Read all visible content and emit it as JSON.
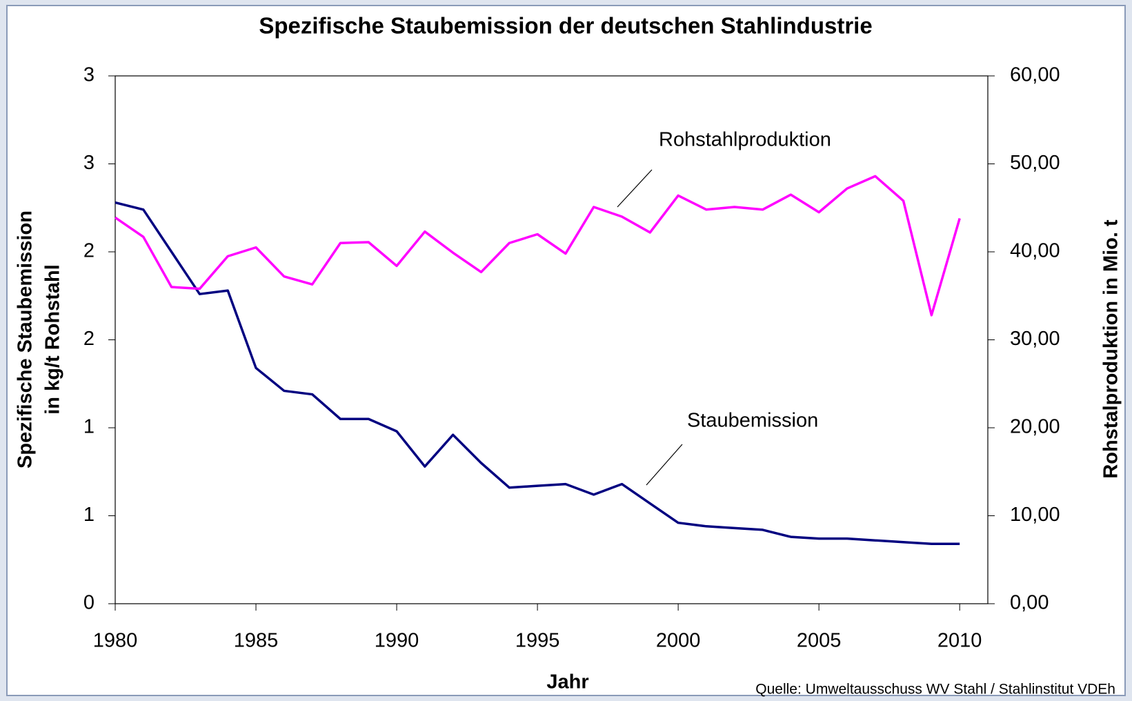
{
  "chart_data": {
    "type": "line",
    "title": "Spezifische Staubemission der deutschen Stahlindustrie",
    "x_label": "Jahr",
    "y_label": [
      "Spezifische Staubemission",
      "in kg/t Rohstahl"
    ],
    "y2_label": "Rohstalproduktion in Mio. t",
    "source": "Quelle: Umweltausschuss WV Stahl / Stahlinstitut VDEh",
    "x": [
      1980,
      1981,
      1982,
      1983,
      1984,
      1985,
      1986,
      1987,
      1988,
      1989,
      1990,
      1991,
      1992,
      1993,
      1994,
      1995,
      1996,
      1997,
      1998,
      1999,
      2000,
      2001,
      2002,
      2003,
      2004,
      2005,
      2006,
      2007,
      2008,
      2009,
      2010
    ],
    "xlim": [
      1980,
      2011
    ],
    "xticks": [
      1980,
      1985,
      1990,
      1995,
      2000,
      2005,
      2010
    ],
    "ylim": [
      0,
      3
    ],
    "yticks": [
      0,
      {
        "value": 0.5,
        "label": "1"
      },
      1,
      {
        "value": 1.5,
        "label": "2"
      },
      2,
      {
        "value": 2.5,
        "label": "3"
      },
      3
    ],
    "y2lim": [
      0,
      60
    ],
    "y2ticks": [
      {
        "value": 0,
        "label": "0,00"
      },
      {
        "value": 10,
        "label": "10,00"
      },
      {
        "value": 20,
        "label": "20,00"
      },
      {
        "value": 30,
        "label": "30,00"
      },
      {
        "value": 40,
        "label": "40,00"
      },
      {
        "value": 50,
        "label": "50,00"
      },
      {
        "value": 60,
        "label": "60,00"
      }
    ],
    "series": [
      {
        "name": "Staubemission",
        "color": "#000080",
        "values": [
          2.28,
          2.24,
          2.0,
          1.76,
          1.78,
          1.34,
          1.21,
          1.19,
          1.05,
          1.05,
          0.98,
          0.78,
          0.96,
          0.8,
          0.66,
          0.67,
          0.68,
          0.62,
          0.68,
          0.57,
          0.46,
          0.44,
          0.43,
          0.42,
          0.38,
          0.37,
          0.37,
          0.36,
          0.35,
          0.34,
          0.34
        ]
      },
      {
        "name": "Rohstahlproduktion",
        "color": "#ff00ff",
        "axis": "y2",
        "values": [
          43.9,
          41.7,
          36.0,
          35.8,
          39.5,
          40.5,
          37.2,
          36.3,
          41.0,
          41.1,
          38.4,
          42.3,
          39.9,
          37.7,
          41.0,
          42.0,
          39.8,
          45.1,
          44.0,
          42.2,
          46.4,
          44.8,
          45.1,
          44.8,
          46.5,
          44.5,
          47.2,
          48.6,
          45.8,
          32.8,
          43.8
        ]
      }
    ]
  }
}
